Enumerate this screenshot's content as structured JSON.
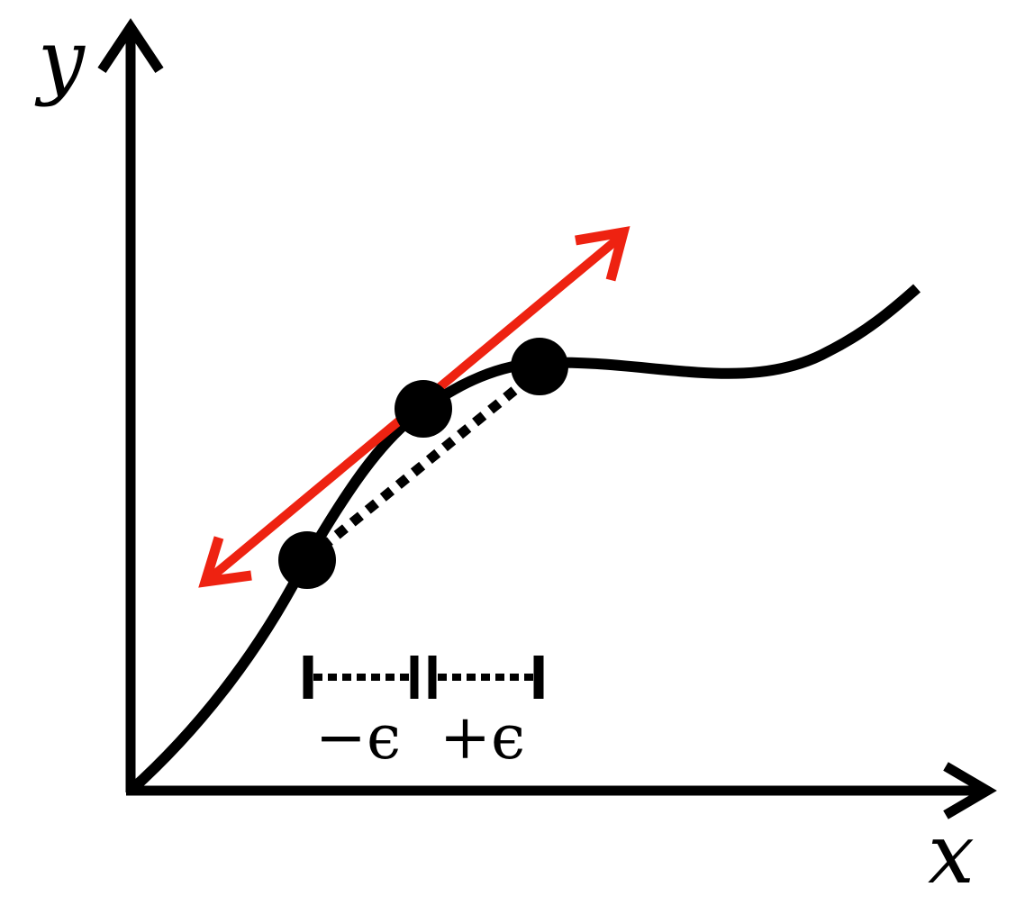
{
  "diagram": {
    "axes": {
      "x_label": "x",
      "y_label": "y"
    },
    "interval": {
      "minus_label": "−ϵ",
      "plus_label": "+ϵ"
    },
    "colors": {
      "curve": "#000000",
      "tangent": "#ee2211",
      "secant": "#000000",
      "background": "#ffffff"
    }
  }
}
